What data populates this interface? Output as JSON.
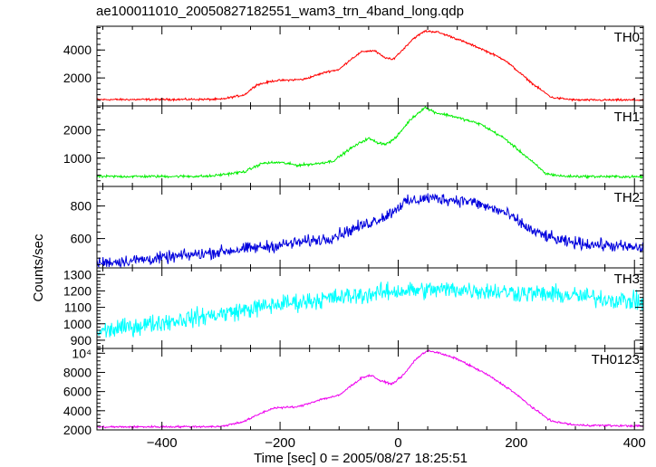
{
  "title": "ae100011010_20050827182551_wam3_trn_4band_long.qdp",
  "chart_data": {
    "type": "line",
    "title": "ae100011010_20050827182551_wam3_trn_4band_long.qdp",
    "xlabel": "Time [sec] 0 = 2005/08/27 18:25:51",
    "ylabel": "Counts/sec",
    "xlim": [
      -510,
      415
    ],
    "xticks": [
      -400,
      -200,
      0,
      200,
      400
    ],
    "legend": "none",
    "grid": false,
    "panels": [
      {
        "name": "TH0",
        "color": "#ff0000",
        "ylim": [
          0,
          5700
        ],
        "yticks": [
          {
            "v": 2000,
            "t": "2000"
          },
          {
            "v": 4000,
            "t": "4000"
          }
        ],
        "noise": 55,
        "profile": [
          [
            -510,
            450
          ],
          [
            -300,
            470
          ],
          [
            -260,
            800
          ],
          [
            -240,
            1500
          ],
          [
            -210,
            1800
          ],
          [
            -160,
            1900
          ],
          [
            -120,
            2450
          ],
          [
            -100,
            2600
          ],
          [
            -80,
            3350
          ],
          [
            -60,
            3900
          ],
          [
            -40,
            3950
          ],
          [
            -25,
            3500
          ],
          [
            -10,
            3300
          ],
          [
            5,
            3900
          ],
          [
            25,
            4800
          ],
          [
            45,
            5350
          ],
          [
            65,
            5300
          ],
          [
            90,
            4950
          ],
          [
            140,
            4100
          ],
          [
            180,
            3300
          ],
          [
            230,
            1500
          ],
          [
            260,
            600
          ],
          [
            300,
            420
          ],
          [
            415,
            420
          ]
        ]
      },
      {
        "name": "TH1",
        "color": "#00ee00",
        "ylim": [
          0,
          2850
        ],
        "yticks": [
          {
            "v": 1000,
            "t": "1000"
          },
          {
            "v": 2000,
            "t": "2000"
          }
        ],
        "noise": 35,
        "profile": [
          [
            -510,
            350
          ],
          [
            -320,
            360
          ],
          [
            -260,
            520
          ],
          [
            -230,
            820
          ],
          [
            -200,
            850
          ],
          [
            -170,
            750
          ],
          [
            -140,
            800
          ],
          [
            -110,
            900
          ],
          [
            -80,
            1350
          ],
          [
            -60,
            1600
          ],
          [
            -50,
            1700
          ],
          [
            -35,
            1550
          ],
          [
            -20,
            1500
          ],
          [
            -5,
            1700
          ],
          [
            20,
            2350
          ],
          [
            45,
            2800
          ],
          [
            65,
            2600
          ],
          [
            90,
            2500
          ],
          [
            140,
            2200
          ],
          [
            180,
            1700
          ],
          [
            220,
            1000
          ],
          [
            250,
            450
          ],
          [
            280,
            360
          ],
          [
            415,
            340
          ]
        ]
      },
      {
        "name": "TH2",
        "color": "#0000dd",
        "ylim": [
          420,
          920
        ],
        "yticks": [
          {
            "v": 600,
            "t": "600"
          },
          {
            "v": 800,
            "t": "800"
          }
        ],
        "noise": 28,
        "profile": [
          [
            -510,
            450
          ],
          [
            -400,
            480
          ],
          [
            -300,
            520
          ],
          [
            -200,
            560
          ],
          [
            -120,
            600
          ],
          [
            -60,
            680
          ],
          [
            -20,
            740
          ],
          [
            10,
            820
          ],
          [
            50,
            850
          ],
          [
            120,
            830
          ],
          [
            180,
            760
          ],
          [
            230,
            640
          ],
          [
            280,
            580
          ],
          [
            415,
            540
          ]
        ]
      },
      {
        "name": "TH3",
        "color": "#00ffff",
        "ylim": [
          850,
          1340
        ],
        "yticks": [
          {
            "v": 900,
            "t": "900"
          },
          {
            "v": 1000,
            "t": "1000"
          },
          {
            "v": 1100,
            "t": "1100"
          },
          {
            "v": 1200,
            "t": "1200"
          },
          {
            "v": 1300,
            "t": "1300"
          }
        ],
        "noise": 42,
        "profile": [
          [
            -510,
            950
          ],
          [
            -400,
            1010
          ],
          [
            -300,
            1060
          ],
          [
            -200,
            1120
          ],
          [
            -100,
            1160
          ],
          [
            0,
            1200
          ],
          [
            100,
            1210
          ],
          [
            200,
            1190
          ],
          [
            300,
            1170
          ],
          [
            415,
            1130
          ]
        ]
      },
      {
        "name": "TH0123",
        "color": "#ee00ee",
        "ylim": [
          2000,
          10500
        ],
        "yticks": [
          {
            "v": 2000,
            "t": "2000"
          },
          {
            "v": 4000,
            "t": "4000"
          },
          {
            "v": 6000,
            "t": "6000"
          },
          {
            "v": 8000,
            "t": "8000"
          },
          {
            "v": 10000,
            "t": "10⁴"
          }
        ],
        "noise": 80,
        "profile": [
          [
            -510,
            2300
          ],
          [
            -300,
            2350
          ],
          [
            -260,
            2900
          ],
          [
            -230,
            3800
          ],
          [
            -210,
            4300
          ],
          [
            -170,
            4400
          ],
          [
            -130,
            5200
          ],
          [
            -100,
            5600
          ],
          [
            -80,
            6600
          ],
          [
            -60,
            7500
          ],
          [
            -45,
            7700
          ],
          [
            -30,
            7100
          ],
          [
            -10,
            6800
          ],
          [
            10,
            7800
          ],
          [
            30,
            9400
          ],
          [
            50,
            10300
          ],
          [
            70,
            10000
          ],
          [
            100,
            9400
          ],
          [
            150,
            7800
          ],
          [
            190,
            6200
          ],
          [
            230,
            4200
          ],
          [
            260,
            2900
          ],
          [
            300,
            2500
          ],
          [
            415,
            2400
          ]
        ]
      }
    ]
  }
}
